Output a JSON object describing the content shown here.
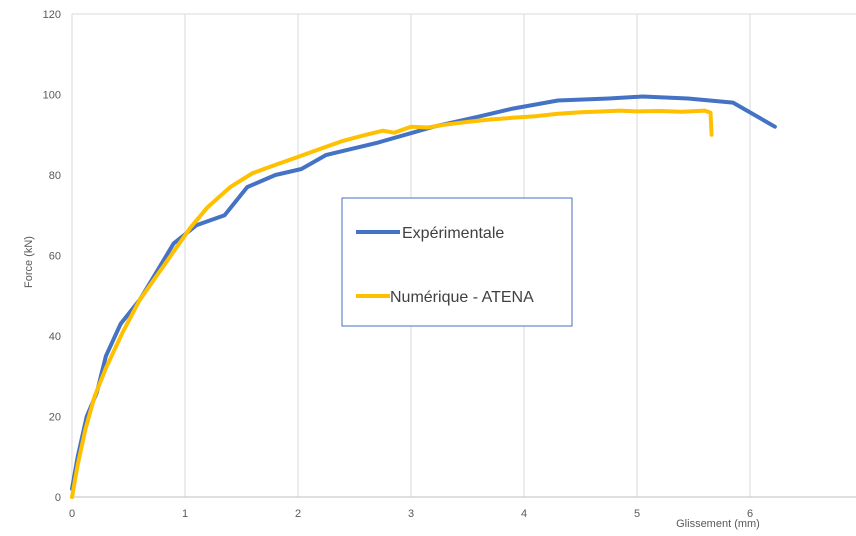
{
  "chart_data": {
    "type": "line",
    "title": "",
    "xlabel": "Glissement (mm)",
    "ylabel": "Force (kN)",
    "xlim": [
      0,
      7
    ],
    "ylim": [
      0,
      120
    ],
    "x_ticks": [
      "0",
      "1",
      "2",
      "3",
      "4",
      "5",
      "6"
    ],
    "y_ticks": [
      "0",
      "20",
      "40",
      "60",
      "80",
      "100",
      "120"
    ],
    "grid": "vertical",
    "legend_position": "center",
    "series": [
      {
        "name": "Expérimentale",
        "color": "#4472C4",
        "x": [
          0,
          0.05,
          0.13,
          0.22,
          0.3,
          0.43,
          0.6,
          0.75,
          0.9,
          1.1,
          1.35,
          1.55,
          1.8,
          2.03,
          2.25,
          2.7,
          3.2,
          3.6,
          3.9,
          4.3,
          4.75,
          5.05,
          5.45,
          5.85,
          6.22
        ],
        "y": [
          2,
          10,
          20,
          26,
          35,
          43,
          49,
          56,
          63,
          67.5,
          70,
          77,
          80,
          81.5,
          85,
          88,
          92,
          94.5,
          96.5,
          98.5,
          99,
          99.5,
          99,
          98,
          92
        ]
      },
      {
        "name": "Numérique - ATENA",
        "color": "#FFC000",
        "x": [
          0,
          0.05,
          0.12,
          0.2,
          0.3,
          0.45,
          0.6,
          0.75,
          0.9,
          1.05,
          1.2,
          1.4,
          1.6,
          1.8,
          2.0,
          2.2,
          2.4,
          2.6,
          2.75,
          2.85,
          3.0,
          3.15,
          3.3,
          3.5,
          3.7,
          3.9,
          4.1,
          4.3,
          4.5,
          4.7,
          4.85,
          5.0,
          5.2,
          5.4,
          5.6,
          5.65,
          5.66
        ],
        "y": [
          0,
          8,
          17,
          25,
          32,
          41,
          49,
          55,
          61,
          67,
          72,
          77,
          80.5,
          82.5,
          84.5,
          86.5,
          88.5,
          90,
          91,
          90.5,
          92,
          91.8,
          92.5,
          93.2,
          93.8,
          94.2,
          94.6,
          95.2,
          95.6,
          95.8,
          96,
          95.8,
          95.9,
          95.7,
          96,
          95.5,
          90
        ]
      }
    ]
  }
}
